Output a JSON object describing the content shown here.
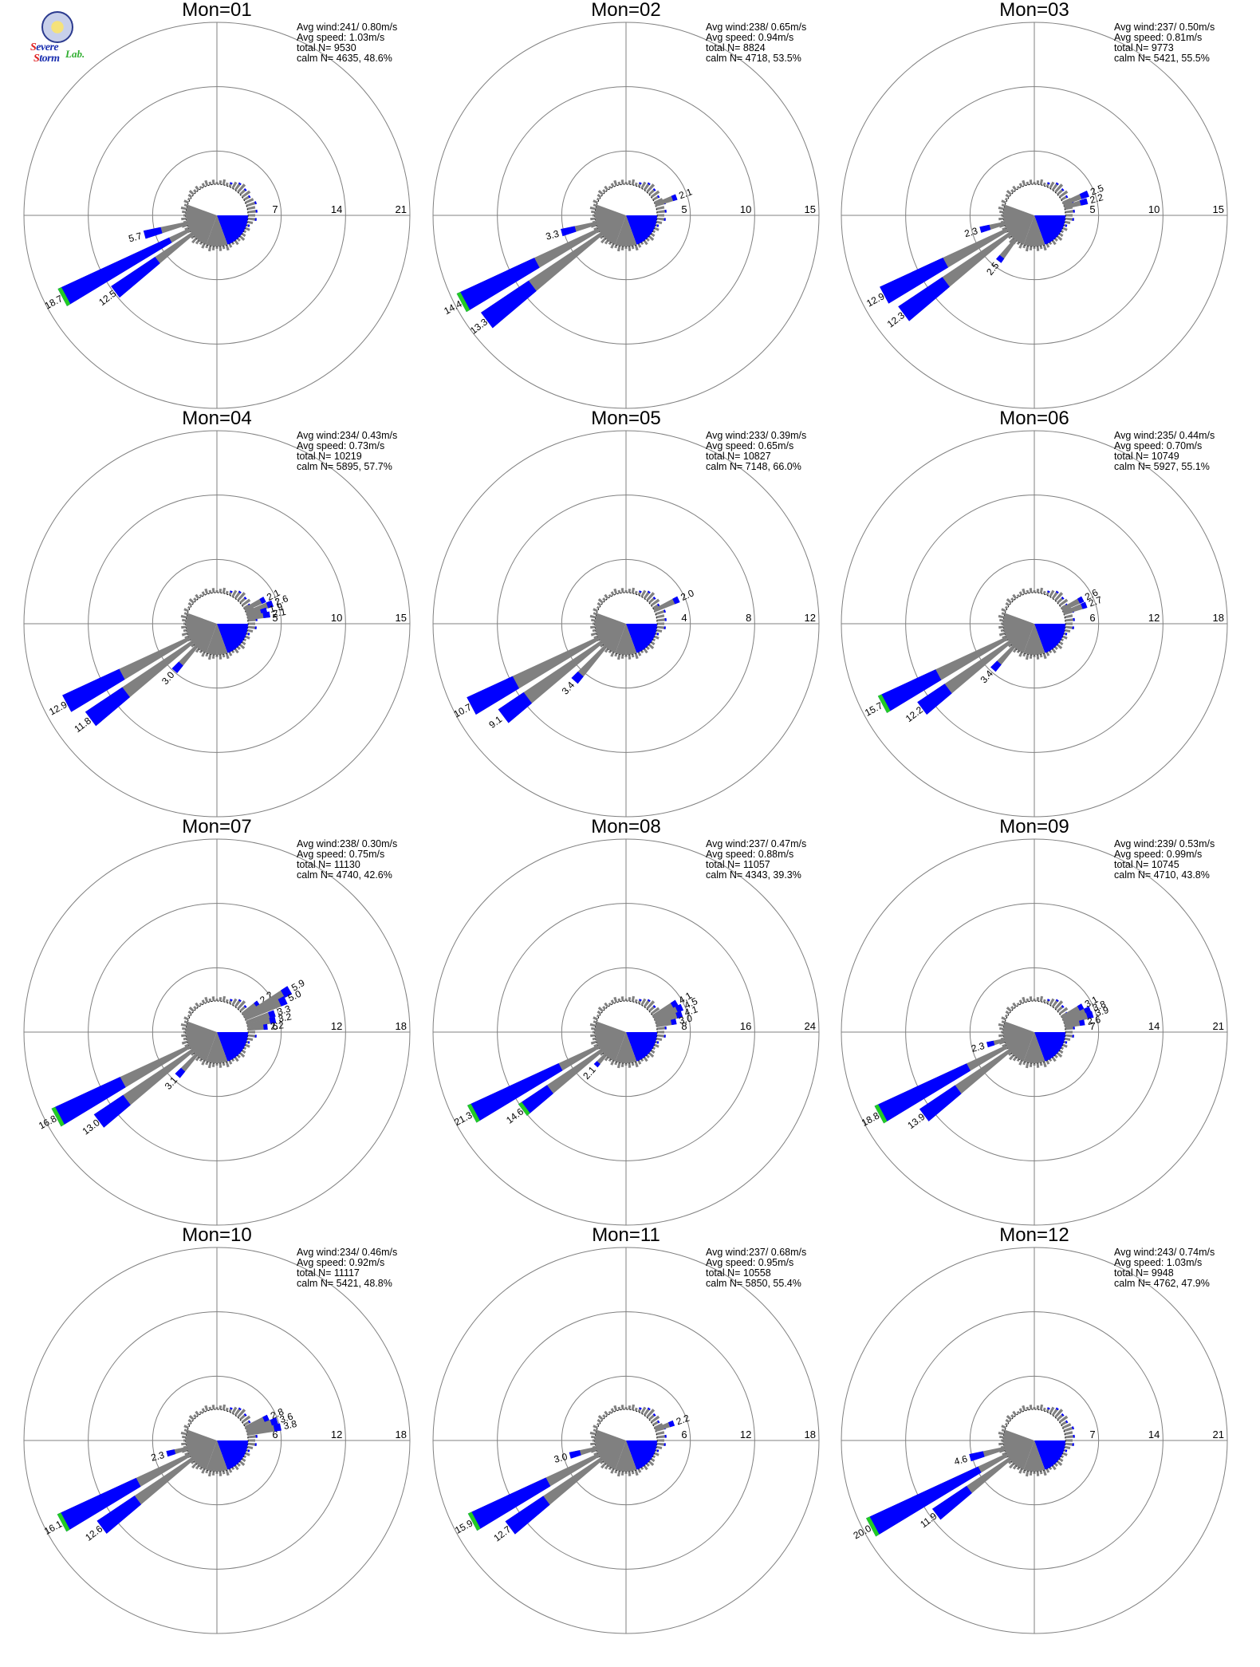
{
  "logo": {
    "line1_first": "S",
    "line1_rest": "evere",
    "line2_first": "S",
    "line2_rest": "torm",
    "lab": "Lab."
  },
  "colors": {
    "blue": "#0000ff",
    "gray": "#808080",
    "green": "#22cc22",
    "ring": "#808080"
  },
  "chart_data": [
    {
      "type": "rose",
      "title": "Mon=01",
      "ring_labels": [
        "7",
        "14",
        "21"
      ],
      "rmax": 21,
      "stats": [
        "Avg wind:241/ 0.80m/s",
        "Avg speed: 1.03m/s",
        "total N=       9530",
        "calm N=   4635,  48.6%"
      ],
      "bars": [
        {
          "dir": 242,
          "value": 18.7,
          "label": "18.7",
          "blue": 0.85
        },
        {
          "dir": 233,
          "value": 12.5,
          "label": "12.5",
          "blue": 0.55
        },
        {
          "dir": 255,
          "value": 5.7,
          "label": "5.7",
          "blue": 0.4
        }
      ]
    },
    {
      "type": "rose",
      "title": "Mon=02",
      "ring_labels": [
        "5",
        "10",
        "15"
      ],
      "rmax": 15,
      "stats": [
        "Avg wind:238/ 0.65m/s",
        "Avg speed: 0.94m/s",
        "total N=       8824",
        "calm N=   4718,  53.5%"
      ],
      "bars": [
        {
          "dir": 242,
          "value": 14.4,
          "label": "14.4",
          "blue": 0.55
        },
        {
          "dir": 233,
          "value": 13.3,
          "label": "13.3",
          "blue": 0.4
        },
        {
          "dir": 255,
          "value": 3.3,
          "label": "3.3",
          "blue": 0.4
        },
        {
          "dir": 70,
          "value": 2.1,
          "label": "2.1",
          "blue": 0.2
        }
      ]
    },
    {
      "type": "rose",
      "title": "Mon=03",
      "ring_labels": [
        "5",
        "10",
        "15"
      ],
      "rmax": 15,
      "stats": [
        "Avg wind:237/ 0.50m/s",
        "Avg speed: 0.81m/s",
        "total N=       9773",
        "calm N=   5421,  55.5%"
      ],
      "bars": [
        {
          "dir": 242,
          "value": 12.9,
          "label": "12.9",
          "blue": 0.5
        },
        {
          "dir": 233,
          "value": 12.3,
          "label": "12.3",
          "blue": 0.4
        },
        {
          "dir": 255,
          "value": 2.3,
          "label": "2.3",
          "blue": 0.4
        },
        {
          "dir": 218,
          "value": 2.5,
          "label": "2.5",
          "blue": 0.2
        },
        {
          "dir": 68,
          "value": 2.5,
          "label": "2.5",
          "blue": 0.3
        },
        {
          "dir": 75,
          "value": 2.2,
          "label": "2.2",
          "blue": 0.3
        }
      ]
    },
    {
      "type": "rose",
      "title": "Mon=04",
      "ring_labels": [
        "5",
        "10",
        "15"
      ],
      "rmax": 15,
      "stats": [
        "Avg wind:234/ 0.43m/s",
        "Avg speed: 0.73m/s",
        "total N=      10219",
        "calm N=   5895,  57.7%"
      ],
      "bars": [
        {
          "dir": 242,
          "value": 12.9,
          "label": "12.9",
          "blue": 0.45
        },
        {
          "dir": 233,
          "value": 11.8,
          "label": "11.8",
          "blue": 0.35
        },
        {
          "dir": 222,
          "value": 3.0,
          "label": "3.0",
          "blue": 0.3
        },
        {
          "dir": 63,
          "value": 2.1,
          "label": "2.1",
          "blue": 0.2
        },
        {
          "dir": 70,
          "value": 2.6,
          "label": "2.6",
          "blue": 0.2
        },
        {
          "dir": 75,
          "value": 1.9,
          "label": "1.9",
          "blue": 0.3
        },
        {
          "dir": 80,
          "value": 2.1,
          "label": "2.1",
          "blue": 0.3
        }
      ]
    },
    {
      "type": "rose",
      "title": "Mon=05",
      "ring_labels": [
        "4",
        "8",
        "12"
      ],
      "rmax": 12,
      "stats": [
        "Avg wind:233/ 0.39m/s",
        "Avg speed: 0.65m/s",
        "total N=      10827",
        "calm N=   7148,  66.0%"
      ],
      "bars": [
        {
          "dir": 242,
          "value": 10.7,
          "label": "10.7",
          "blue": 0.35
        },
        {
          "dir": 233,
          "value": 9.1,
          "label": "9.1",
          "blue": 0.25
        },
        {
          "dir": 222,
          "value": 3.4,
          "label": "3.4",
          "blue": 0.2
        },
        {
          "dir": 65,
          "value": 2.0,
          "label": "2.0",
          "blue": 0.2
        }
      ]
    },
    {
      "type": "rose",
      "title": "Mon=06",
      "ring_labels": [
        "6",
        "12",
        "18"
      ],
      "rmax": 18,
      "stats": [
        "Avg wind:235/ 0.44m/s",
        "Avg speed: 0.70m/s",
        "total N=      10749",
        "calm N=   5927,  55.1%"
      ],
      "bars": [
        {
          "dir": 242,
          "value": 15.7,
          "label": "15.7",
          "blue": 0.45
        },
        {
          "dir": 233,
          "value": 12.2,
          "label": "12.2",
          "blue": 0.3
        },
        {
          "dir": 222,
          "value": 3.4,
          "label": "3.4",
          "blue": 0.3
        },
        {
          "dir": 63,
          "value": 2.6,
          "label": "2.6",
          "blue": 0.2
        },
        {
          "dir": 70,
          "value": 2.7,
          "label": "2.7",
          "blue": 0.2
        }
      ]
    },
    {
      "type": "rose",
      "title": "Mon=07",
      "ring_labels": [
        "6",
        "12",
        "18"
      ],
      "rmax": 18,
      "stats": [
        "Avg wind:238/ 0.30m/s",
        "Avg speed: 0.75m/s",
        "total N=      11130",
        "calm N=   4740,  42.6%"
      ],
      "bars": [
        {
          "dir": 242,
          "value": 16.8,
          "label": "16.8",
          "blue": 0.5
        },
        {
          "dir": 233,
          "value": 13.0,
          "label": "13.0",
          "blue": 0.3
        },
        {
          "dir": 222,
          "value": 3.1,
          "label": "3.1",
          "blue": 0.3
        },
        {
          "dir": 55,
          "value": 2.2,
          "label": "2.2",
          "blue": 0.2
        },
        {
          "dir": 60,
          "value": 5.9,
          "label": "5.9",
          "blue": 0.15
        },
        {
          "dir": 65,
          "value": 5.0,
          "label": "5.0",
          "blue": 0.15
        },
        {
          "dir": 72,
          "value": 3.3,
          "label": "3.3",
          "blue": 0.2
        },
        {
          "dir": 78,
          "value": 3.2,
          "label": "3.2",
          "blue": 0.2
        },
        {
          "dir": 84,
          "value": 2.2,
          "label": "2.2",
          "blue": 0.2
        }
      ]
    },
    {
      "type": "rose",
      "title": "Mon=08",
      "ring_labels": [
        "8",
        "16",
        "24"
      ],
      "rmax": 24,
      "stats": [
        "Avg wind:237/ 0.47m/s",
        "Avg speed: 0.88m/s",
        "total N=      11057",
        "calm N=   4343,  39.3%"
      ],
      "bars": [
        {
          "dir": 242,
          "value": 21.3,
          "label": "21.3",
          "blue": 0.7
        },
        {
          "dir": 233,
          "value": 14.6,
          "label": "14.6",
          "blue": 0.35
        },
        {
          "dir": 222,
          "value": 2.1,
          "label": "2.1",
          "blue": 0.3
        },
        {
          "dir": 60,
          "value": 4.1,
          "label": "4.1",
          "blue": 0.2
        },
        {
          "dir": 66,
          "value": 4.5,
          "label": "4.5",
          "blue": 0.2
        },
        {
          "dir": 72,
          "value": 4.1,
          "label": "4.1",
          "blue": 0.2
        },
        {
          "dir": 78,
          "value": 3.0,
          "label": "3.0",
          "blue": 0.25
        }
      ]
    },
    {
      "type": "rose",
      "title": "Mon=09",
      "ring_labels": [
        "7",
        "14",
        "21"
      ],
      "rmax": 21,
      "stats": [
        "Avg wind:239/ 0.53m/s",
        "Avg speed: 0.99m/s",
        "total N=      10745",
        "calm N=   4710,  43.8%"
      ],
      "bars": [
        {
          "dir": 242,
          "value": 18.8,
          "label": "18.8",
          "blue": 0.7
        },
        {
          "dir": 233,
          "value": 13.9,
          "label": "13.9",
          "blue": 0.4
        },
        {
          "dir": 255,
          "value": 2.3,
          "label": "2.3",
          "blue": 0.4
        },
        {
          "dir": 62,
          "value": 3.1,
          "label": "3.1",
          "blue": 0.2
        },
        {
          "dir": 68,
          "value": 3.8,
          "label": "3.8",
          "blue": 0.2
        },
        {
          "dir": 73,
          "value": 3.9,
          "label": "3.9",
          "blue": 0.2
        },
        {
          "dir": 79,
          "value": 2.6,
          "label": "2.6",
          "blue": 0.25
        }
      ]
    },
    {
      "type": "rose",
      "title": "Mon=10",
      "ring_labels": [
        "6",
        "12",
        "18"
      ],
      "rmax": 18,
      "stats": [
        "Avg wind:234/ 0.46m/s",
        "Avg speed: 0.92m/s",
        "total N=      11117",
        "calm N=   5421,  48.8%"
      ],
      "bars": [
        {
          "dir": 242,
          "value": 16.1,
          "label": "16.1",
          "blue": 0.6
        },
        {
          "dir": 233,
          "value": 12.6,
          "label": "12.6",
          "blue": 0.4
        },
        {
          "dir": 255,
          "value": 2.3,
          "label": "2.3",
          "blue": 0.4
        },
        {
          "dir": 66,
          "value": 2.8,
          "label": "2.8",
          "blue": 0.2
        },
        {
          "dir": 72,
          "value": 3.6,
          "label": "3.6",
          "blue": 0.2
        },
        {
          "dir": 78,
          "value": 3.8,
          "label": "3.8",
          "blue": 0.2
        }
      ]
    },
    {
      "type": "rose",
      "title": "Mon=11",
      "ring_labels": [
        "6",
        "12",
        "18"
      ],
      "rmax": 18,
      "stats": [
        "Avg wind:237/ 0.68m/s",
        "Avg speed: 0.95m/s",
        "total N=      10558",
        "calm N=   5850,  55.4%"
      ],
      "bars": [
        {
          "dir": 242,
          "value": 15.9,
          "label": "15.9",
          "blue": 0.6
        },
        {
          "dir": 233,
          "value": 12.7,
          "label": "12.7",
          "blue": 0.4
        },
        {
          "dir": 255,
          "value": 3.0,
          "label": "3.0",
          "blue": 0.4
        },
        {
          "dir": 70,
          "value": 2.2,
          "label": "2.2",
          "blue": 0.25
        }
      ]
    },
    {
      "type": "rose",
      "title": "Mon=12",
      "ring_labels": [
        "7",
        "14",
        "21"
      ],
      "rmax": 21,
      "stats": [
        "Avg wind:243/ 0.74m/s",
        "Avg speed: 1.03m/s",
        "total N=       9948",
        "calm N=   4762,  47.9%"
      ],
      "bars": [
        {
          "dir": 242,
          "value": 20.0,
          "label": "20.0",
          "blue": 0.8
        },
        {
          "dir": 233,
          "value": 11.9,
          "label": "11.9",
          "blue": 0.45
        },
        {
          "dir": 255,
          "value": 4.6,
          "label": "4.6",
          "blue": 0.4
        }
      ]
    }
  ]
}
